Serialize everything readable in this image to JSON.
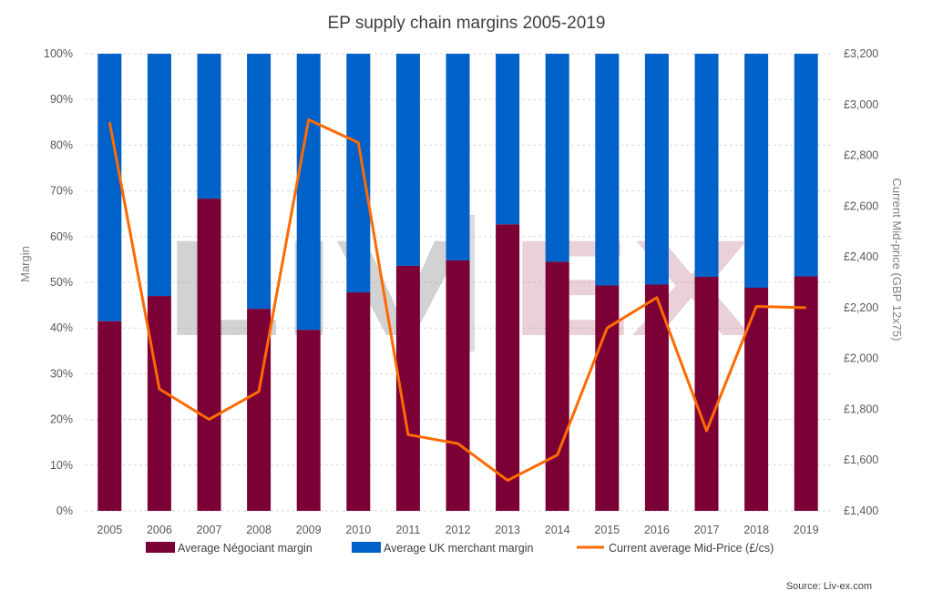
{
  "chart_data": {
    "type": "bar",
    "stacked": true,
    "title": "EP supply chain margins 2005-2019",
    "categories": [
      "2005",
      "2006",
      "2007",
      "2008",
      "2009",
      "2010",
      "2011",
      "2012",
      "2013",
      "2014",
      "2015",
      "2016",
      "2017",
      "2018",
      "2019"
    ],
    "series": [
      {
        "name": "Average Négociant margin",
        "type": "bar",
        "axis": "left",
        "color": "#7b0035",
        "values": [
          41.5,
          47.0,
          68.3,
          44.2,
          39.6,
          47.8,
          53.6,
          54.8,
          62.7,
          54.5,
          49.3,
          49.5,
          51.2,
          48.8,
          51.3
        ]
      },
      {
        "name": "Average UK merchant margin",
        "type": "bar",
        "axis": "left",
        "color": "#0061c8",
        "values": [
          58.5,
          53.0,
          31.7,
          55.8,
          60.4,
          52.2,
          46.4,
          45.2,
          37.3,
          45.5,
          50.7,
          50.5,
          48.8,
          51.2,
          48.7
        ]
      },
      {
        "name": "Current average Mid-Price (£/cs)",
        "type": "line",
        "axis": "right",
        "color": "#ff6a00",
        "values": [
          2930,
          1880,
          1760,
          1870,
          2940,
          2850,
          1700,
          1665,
          1520,
          1620,
          2120,
          2240,
          1715,
          2205,
          2200
        ]
      }
    ],
    "ylabel": "Margin",
    "y2label": "Current Mid-price (GBP 12x75)",
    "ylim": [
      0,
      100
    ],
    "y2lim": [
      1400,
      3200
    ],
    "yticks": [
      "0%",
      "10%",
      "20%",
      "30%",
      "40%",
      "50%",
      "60%",
      "70%",
      "80%",
      "90%",
      "100%"
    ],
    "y2ticks": [
      "£1,400",
      "£1,600",
      "£1,800",
      "£2,000",
      "£2,200",
      "£2,400",
      "£2,600",
      "£2,800",
      "£3,000",
      "£3,200"
    ],
    "grid": true,
    "legend_position": "bottom",
    "source": "Source: Liv-ex.com",
    "watermark": "LIV|EX"
  }
}
